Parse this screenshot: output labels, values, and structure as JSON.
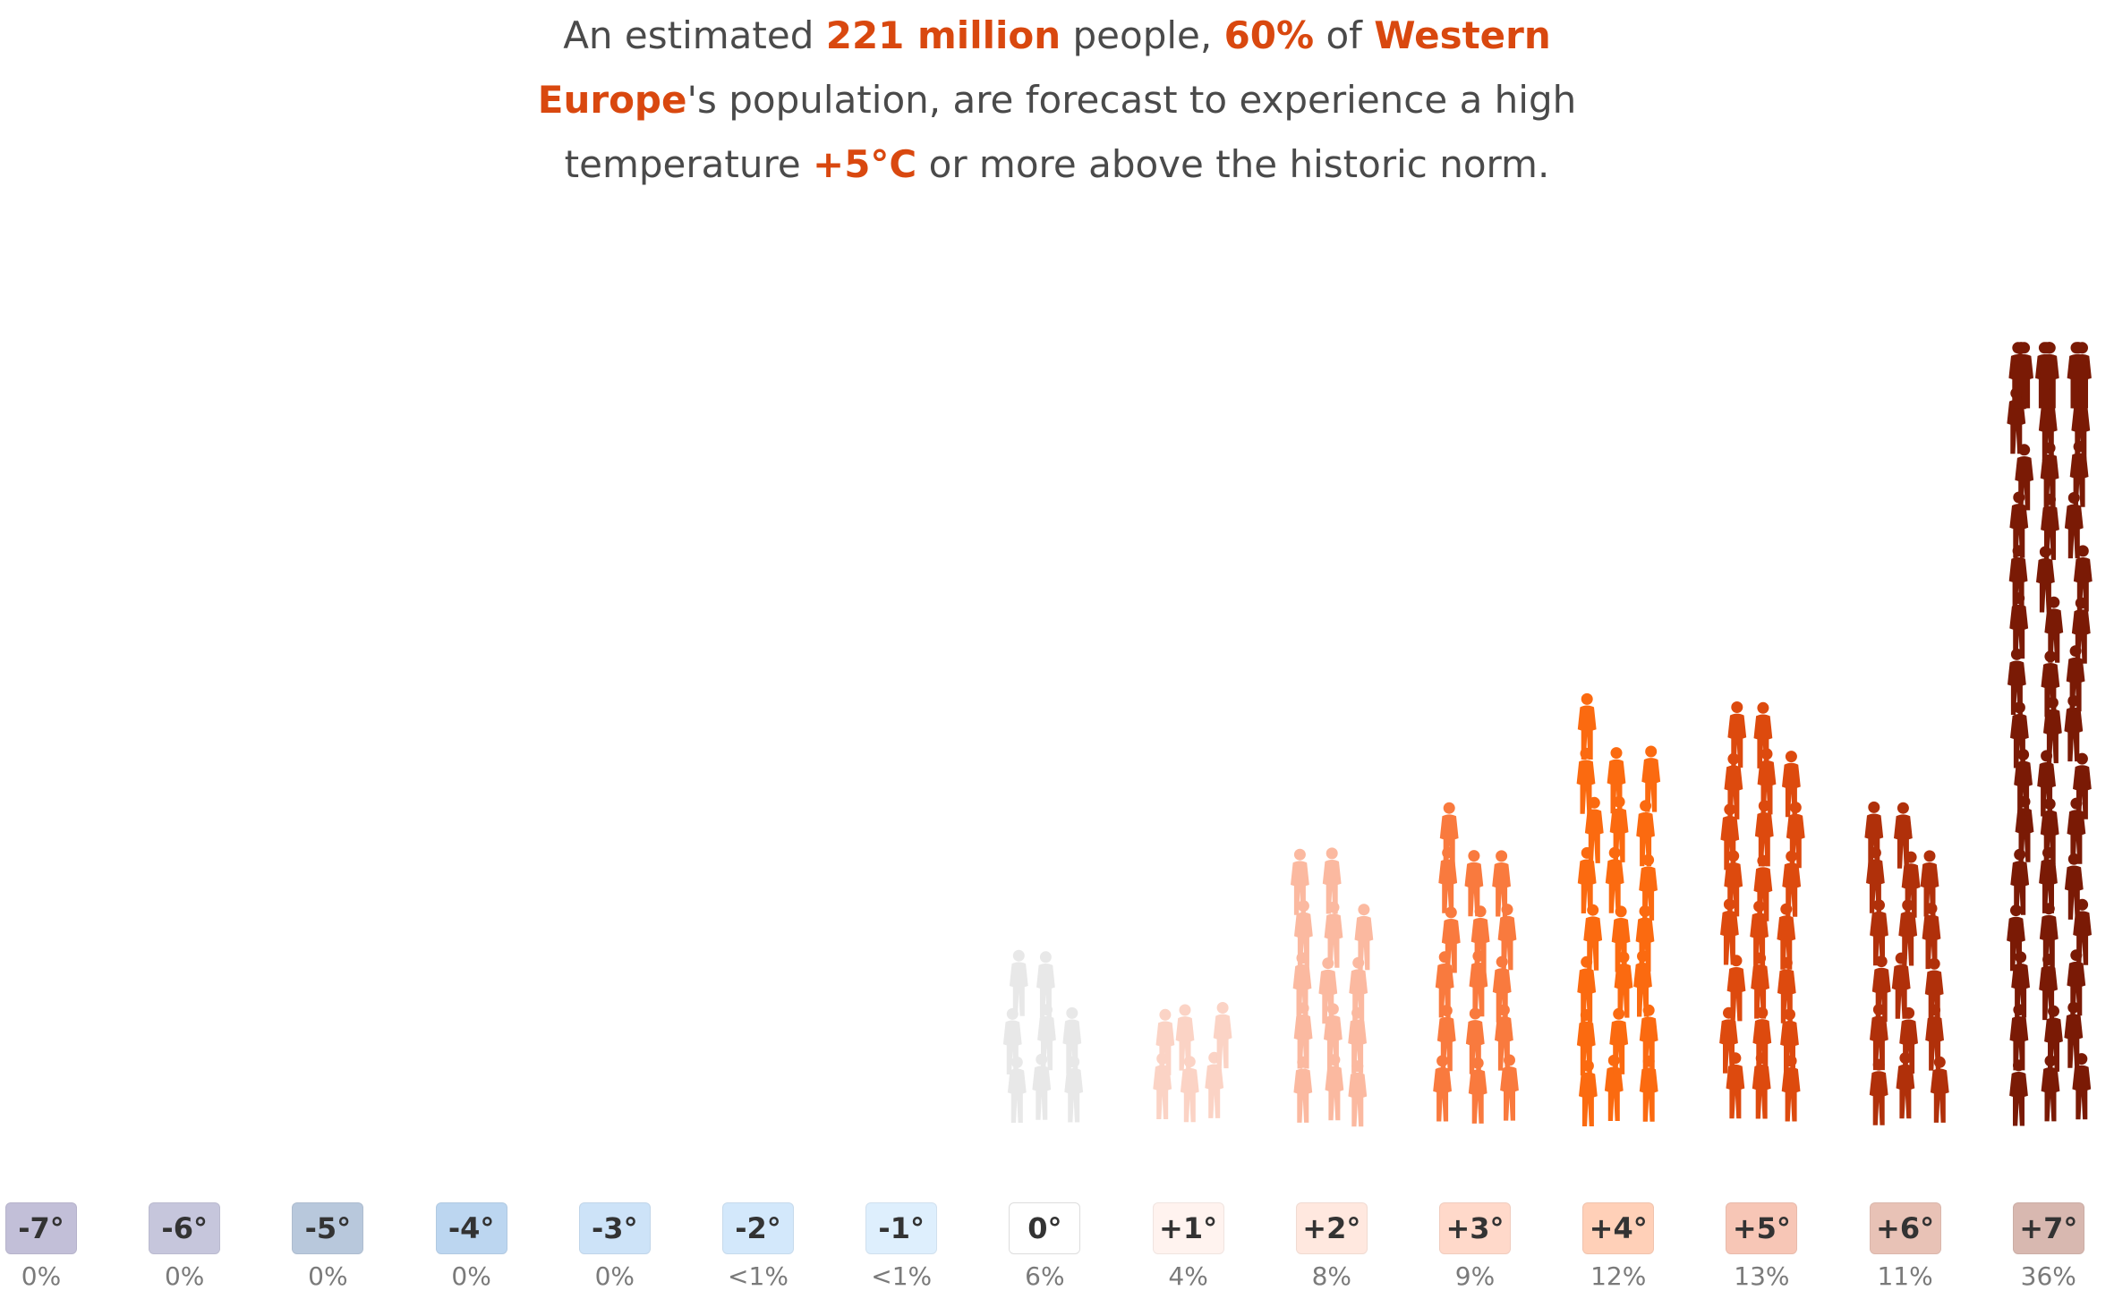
{
  "headline": {
    "t1": "An estimated ",
    "h1": "221 million",
    "t2": " people, ",
    "h2": "60%",
    "t3": " of ",
    "h3": "Western Europe",
    "t4": "'s population, are forecast to experience a high temperature ",
    "h4": "+5°C",
    "t5": " or more above the historic norm."
  },
  "chart_data": {
    "type": "bar",
    "categories": [
      "-7°",
      "-6°",
      "-5°",
      "-4°",
      "-3°",
      "-2°",
      "-1°",
      "0°",
      "+1°",
      "+2°",
      "+3°",
      "+4°",
      "+5°",
      "+6°",
      "+7°"
    ],
    "value_labels": [
      "0%",
      "0%",
      "0%",
      "0%",
      "0%",
      "<1%",
      "<1%",
      "6%",
      "4%",
      "8%",
      "9%",
      "12%",
      "13%",
      "11%",
      "36%"
    ],
    "values": [
      0,
      0,
      0,
      0,
      0,
      0.5,
      0.5,
      6,
      4,
      8,
      9,
      12,
      13,
      11,
      36
    ],
    "figure_counts": [
      0,
      0,
      0,
      0,
      0,
      0,
      0,
      8,
      6,
      14,
      16,
      22,
      23,
      17,
      56
    ],
    "badge_colors": [
      "#c2bfd8",
      "#c6c6dc",
      "#b8c8dc",
      "#bcd6f0",
      "#cde3f8",
      "#d3e8fb",
      "#deeffd",
      "#ffffff",
      "#fff3ef",
      "#ffe8df",
      "#ffd9ca",
      "#ffd0b8",
      "#f7c6b6",
      "#e8c2b6",
      "#d8b8b0"
    ],
    "figure_colors": [
      "#bdbdbd",
      "#bdbdbd",
      "#bdbdbd",
      "#bdbdbd",
      "#bdbdbd",
      "#bdbdbd",
      "#bdbdbd",
      "#e8e8e8",
      "#fbd3c5",
      "#fbb9a0",
      "#f97a3e",
      "#fb6a10",
      "#dd4a0e",
      "#b0300a",
      "#7a1a05"
    ],
    "figure_icon": "person-silhouette-icon"
  }
}
